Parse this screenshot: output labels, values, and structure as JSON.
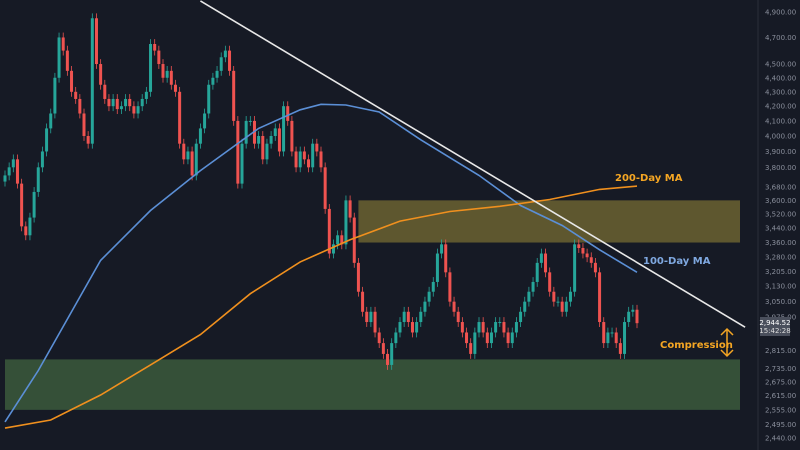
{
  "chart_data": {
    "type": "candlestick",
    "y_scale": "log",
    "ylim": [
      2420,
      4950
    ],
    "grid": false,
    "y_ticks": [
      "4,900.00",
      "4,700.00",
      "4,500.00",
      "4,400.00",
      "4,300.00",
      "4,200.00",
      "4,100.00",
      "4,000.00",
      "3,900.00",
      "3,800.00",
      "3,680.00",
      "3,600.00",
      "3,520.00",
      "3,440.00",
      "3,360.00",
      "3,280.00",
      "3,205.00",
      "3,130.00",
      "3,050.00",
      "2,975.00",
      "2,815.00",
      "2,735.00",
      "2,675.00",
      "2,615.00",
      "2,555.00",
      "2,495.00",
      "2,440.00"
    ],
    "y_tick_values": [
      4900,
      4700,
      4500,
      4400,
      4300,
      4200,
      4100,
      4000,
      3900,
      3800,
      3680,
      3600,
      3520,
      3440,
      3360,
      3280,
      3205,
      3130,
      3050,
      2975,
      2815,
      2735,
      2675,
      2615,
      2555,
      2495,
      2440
    ],
    "closes": [
      3750,
      3800,
      3850,
      3700,
      3450,
      3400,
      3500,
      3650,
      3800,
      3900,
      4050,
      4150,
      4400,
      4700,
      4600,
      4450,
      4300,
      4250,
      4150,
      4000,
      3950,
      4850,
      4500,
      4350,
      4250,
      4200,
      4250,
      4180,
      4200,
      4250,
      4200,
      4150,
      4200,
      4250,
      4300,
      4650,
      4600,
      4500,
      4400,
      4450,
      4350,
      4300,
      3950,
      3850,
      3900,
      3750,
      3950,
      4050,
      4150,
      4350,
      4400,
      4450,
      4550,
      4600,
      4450,
      4100,
      3700,
      3950,
      4100,
      4100,
      3950,
      4000,
      3850,
      3950,
      4000,
      4050,
      3900,
      4200,
      4100,
      3900,
      3800,
      3900,
      3850,
      3800,
      3950,
      3900,
      3800,
      3550,
      3300,
      3350,
      3400,
      3350,
      3600,
      3500,
      3250,
      3100,
      3000,
      2950,
      3000,
      2900,
      2850,
      2800,
      2750,
      2850,
      2900,
      2950,
      3000,
      2950,
      2900,
      2950,
      3000,
      3050,
      3100,
      3150,
      3300,
      3350,
      3200,
      3050,
      3000,
      2950,
      2900,
      2850,
      2800,
      2900,
      2950,
      2900,
      2850,
      2900,
      2950,
      2950,
      2900,
      2850,
      2900,
      2950,
      3000,
      3050,
      3100,
      3150,
      3250,
      3300,
      3200,
      3100,
      3050,
      3050,
      3000,
      3050,
      3100,
      3350,
      3330,
      3300,
      3280,
      3250,
      3200,
      2950,
      2850,
      2900,
      2900,
      2850,
      2800,
      2950,
      3000,
      3010,
      2944.52
    ],
    "series": [
      {
        "name": "100-Day MA",
        "color": "#5b8fd6",
        "points": [
          [
            0,
            2505
          ],
          [
            8,
            2725
          ],
          [
            23,
            3263
          ],
          [
            35,
            3541
          ],
          [
            47,
            3780
          ],
          [
            61,
            4050
          ],
          [
            71,
            4175
          ],
          [
            76,
            4213
          ],
          [
            82,
            4208
          ],
          [
            90,
            4160
          ],
          [
            100,
            3975
          ],
          [
            114,
            3750
          ],
          [
            124,
            3570
          ],
          [
            134,
            3455
          ],
          [
            143,
            3320
          ],
          [
            152,
            3200
          ]
        ]
      },
      {
        "name": "200-Day MA",
        "color": "#f0901e",
        "points": [
          [
            0,
            2480
          ],
          [
            11,
            2513
          ],
          [
            23,
            2618
          ],
          [
            35,
            2750
          ],
          [
            47,
            2890
          ],
          [
            59,
            3090
          ],
          [
            71,
            3255
          ],
          [
            83,
            3375
          ],
          [
            95,
            3480
          ],
          [
            107,
            3535
          ],
          [
            119,
            3565
          ],
          [
            131,
            3605
          ],
          [
            143,
            3665
          ],
          [
            152,
            3685
          ]
        ]
      }
    ],
    "trendline": {
      "color": "#e8e8e8",
      "from": [
        47,
        4990
      ],
      "to": [
        178,
        2925
      ]
    },
    "zones": [
      {
        "kind": "resistance",
        "from_price": 3360,
        "to_price": 3600,
        "start_index": 85,
        "color": "#6b6331"
      },
      {
        "kind": "support",
        "from_price": 2555,
        "to_price": 2775,
        "start_index": 0,
        "color": "#3b5a3c"
      }
    ],
    "annotations": {
      "ma200_label": "200-Day MA",
      "ma100_label": "100-Day MA",
      "compression_label": "Compression"
    },
    "last_price": {
      "value": "2,944.52",
      "countdown": "15:42:28"
    },
    "colors": {
      "up": "#26a69a",
      "down": "#ef5350",
      "background": "#161a25",
      "annotation_orange": "#f5a623",
      "annotation_blue": "#7fa8e0"
    }
  }
}
